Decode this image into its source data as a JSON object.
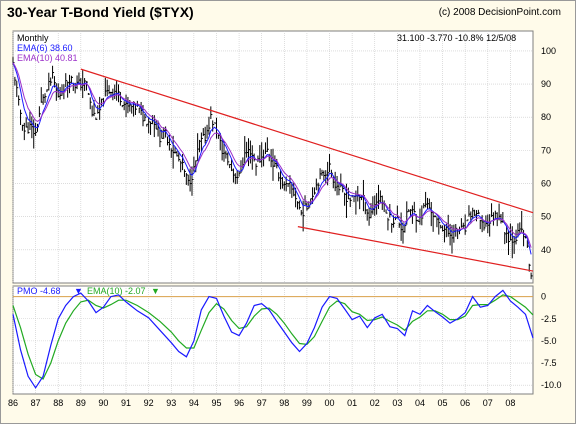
{
  "header": {
    "title": "30-Year T-Bond Yield ($TYX)",
    "copyright": "(c) 2008 DecisionPoint.com"
  },
  "top_panel": {
    "period": "Monthly",
    "ema_short_label": "EMA(6) 38.60",
    "ema_long_label": "EMA(10) 40.81",
    "quote": "31.100  -3.770  -10.8%  12/5/08"
  },
  "pmo_panel": {
    "pmo_label": "PMO  -4.68",
    "ema_label": "EMA(10)  -2.07"
  },
  "colors": {
    "background": "#ffffff",
    "panel": "#fffbea",
    "price_bars": "#000000",
    "ema_short": "#1a1aff",
    "ema_long": "#9b30c9",
    "trendline": "#e02020",
    "pmo_line": "#1a1aff",
    "pmo_ema": "#22aa22",
    "zero_line": "#d9a04a",
    "grid": "#c8c8c8"
  },
  "chart_data": [
    {
      "type": "line",
      "title": "30-Year T-Bond Yield ($TYX)",
      "xlabel": "",
      "ylabel": "",
      "x_ticks": [
        "86",
        "87",
        "88",
        "89",
        "90",
        "91",
        "92",
        "93",
        "94",
        "95",
        "96",
        "97",
        "98",
        "99",
        "00",
        "01",
        "02",
        "03",
        "04",
        "05",
        "06",
        "07",
        "08"
      ],
      "y_ticks": [
        40,
        50,
        60,
        70,
        80,
        90,
        100
      ],
      "xlim": [
        1986.0,
        2009.0
      ],
      "ylim": [
        30,
        106
      ],
      "grid": true,
      "legend_position": "top-left",
      "series": [
        {
          "name": "$TYX",
          "points": [
            [
              1986.0,
              96
            ],
            [
              1986.25,
              84
            ],
            [
              1986.5,
              76
            ],
            [
              1986.75,
              77
            ],
            [
              1987.0,
              75
            ],
            [
              1987.25,
              84
            ],
            [
              1987.5,
              88
            ],
            [
              1987.75,
              92
            ],
            [
              1988.0,
              86
            ],
            [
              1988.25,
              89
            ],
            [
              1988.5,
              92
            ],
            [
              1988.75,
              90
            ],
            [
              1989.0,
              90
            ],
            [
              1989.25,
              90
            ],
            [
              1989.5,
              81
            ],
            [
              1989.75,
              80
            ],
            [
              1990.0,
              86
            ],
            [
              1990.25,
              88
            ],
            [
              1990.5,
              88
            ],
            [
              1990.75,
              86
            ],
            [
              1991.0,
              83
            ],
            [
              1991.25,
              83
            ],
            [
              1991.5,
              83
            ],
            [
              1991.75,
              80
            ],
            [
              1992.0,
              79
            ],
            [
              1992.25,
              79
            ],
            [
              1992.5,
              74
            ],
            [
              1992.75,
              75
            ],
            [
              1993.0,
              71
            ],
            [
              1993.25,
              68
            ],
            [
              1993.5,
              65
            ],
            [
              1993.75,
              60
            ],
            [
              1994.0,
              64
            ],
            [
              1994.25,
              72
            ],
            [
              1994.5,
              74
            ],
            [
              1994.75,
              80
            ],
            [
              1995.0,
              76
            ],
            [
              1995.25,
              70
            ],
            [
              1995.5,
              67
            ],
            [
              1995.75,
              63
            ],
            [
              1996.0,
              62
            ],
            [
              1996.25,
              69
            ],
            [
              1996.5,
              70
            ],
            [
              1996.75,
              66
            ],
            [
              1997.0,
              68
            ],
            [
              1997.25,
              70
            ],
            [
              1997.5,
              66
            ],
            [
              1997.75,
              63
            ],
            [
              1998.0,
              59
            ],
            [
              1998.25,
              59
            ],
            [
              1998.5,
              56
            ],
            [
              1998.75,
              51
            ],
            [
              1999.0,
              53
            ],
            [
              1999.25,
              57
            ],
            [
              1999.5,
              61
            ],
            [
              1999.75,
              63
            ],
            [
              2000.0,
              65
            ],
            [
              2000.25,
              60
            ],
            [
              2000.5,
              58
            ],
            [
              2000.75,
              56
            ],
            [
              2001.0,
              55
            ],
            [
              2001.25,
              57
            ],
            [
              2001.5,
              55
            ],
            [
              2001.75,
              50
            ],
            [
              2002.0,
              54
            ],
            [
              2002.25,
              56
            ],
            [
              2002.5,
              51
            ],
            [
              2002.75,
              49
            ],
            [
              2003.0,
              49
            ],
            [
              2003.25,
              46
            ],
            [
              2003.5,
              52
            ],
            [
              2003.75,
              51
            ],
            [
              2004.0,
              49
            ],
            [
              2004.25,
              54
            ],
            [
              2004.5,
              52
            ],
            [
              2004.75,
              48
            ],
            [
              2005.0,
              47
            ],
            [
              2005.25,
              45
            ],
            [
              2005.5,
              45
            ],
            [
              2005.75,
              46
            ],
            [
              2006.0,
              46
            ],
            [
              2006.25,
              51
            ],
            [
              2006.5,
              51
            ],
            [
              2006.75,
              47
            ],
            [
              2007.0,
              48
            ],
            [
              2007.25,
              50
            ],
            [
              2007.5,
              51
            ],
            [
              2007.75,
              46
            ],
            [
              2008.0,
              43
            ],
            [
              2008.25,
              44
            ],
            [
              2008.5,
              46
            ],
            [
              2008.75,
              41
            ],
            [
              2008.92,
              31
            ]
          ]
        },
        {
          "name": "EMA(6)",
          "value": 38.6
        },
        {
          "name": "EMA(10)",
          "value": 40.81
        }
      ],
      "trendlines": [
        {
          "from": [
            1989.0,
            94.5
          ],
          "to": [
            2009.0,
            51.2
          ]
        },
        {
          "from": [
            1998.6,
            47.0
          ],
          "to": [
            2009.0,
            33.6
          ]
        }
      ]
    },
    {
      "type": "line",
      "title": "",
      "xlabel": "",
      "ylabel": "",
      "x_ticks": [
        "86",
        "87",
        "88",
        "89",
        "90",
        "91",
        "92",
        "93",
        "94",
        "95",
        "96",
        "97",
        "98",
        "99",
        "00",
        "01",
        "02",
        "03",
        "04",
        "05",
        "06",
        "07",
        "08"
      ],
      "y_ticks": [
        0,
        -2.5,
        -5.0,
        -7.5,
        -10.0
      ],
      "y_tick_labels": [
        "0",
        "-2.5",
        "-5.0",
        "-7.5",
        "-10.0"
      ],
      "xlim": [
        1986.0,
        2009.0
      ],
      "ylim": [
        -11,
        1.2
      ],
      "grid": true,
      "legend_position": "top-left",
      "series": [
        {
          "name": "PMO",
          "points": [
            [
              1986.0,
              -2
            ],
            [
              1986.33,
              -6
            ],
            [
              1986.67,
              -9
            ],
            [
              1987.0,
              -10.3
            ],
            [
              1987.33,
              -9
            ],
            [
              1987.67,
              -5.5
            ],
            [
              1988.0,
              -2.5
            ],
            [
              1988.33,
              -1
            ],
            [
              1988.67,
              0
            ],
            [
              1989.0,
              0.4
            ],
            [
              1989.33,
              -0.5
            ],
            [
              1989.67,
              -1.8
            ],
            [
              1990.0,
              -1.2
            ],
            [
              1990.33,
              0
            ],
            [
              1990.67,
              0.2
            ],
            [
              1991.0,
              -0.6
            ],
            [
              1991.5,
              -1.6
            ],
            [
              1992.0,
              -2.4
            ],
            [
              1992.5,
              -3.8
            ],
            [
              1993.0,
              -5.2
            ],
            [
              1993.33,
              -6.2
            ],
            [
              1993.67,
              -6.8
            ],
            [
              1994.0,
              -5
            ],
            [
              1994.33,
              -1.5
            ],
            [
              1994.67,
              0
            ],
            [
              1995.0,
              -0.2
            ],
            [
              1995.33,
              -2.2
            ],
            [
              1995.67,
              -4
            ],
            [
              1996.0,
              -4.4
            ],
            [
              1996.33,
              -3
            ],
            [
              1996.67,
              -1
            ],
            [
              1997.0,
              -0.8
            ],
            [
              1997.33,
              -1.5
            ],
            [
              1997.67,
              -2.8
            ],
            [
              1998.0,
              -4
            ],
            [
              1998.33,
              -5.2
            ],
            [
              1998.67,
              -6.2
            ],
            [
              1999.0,
              -5.3
            ],
            [
              1999.33,
              -3.5
            ],
            [
              1999.67,
              -1.2
            ],
            [
              2000.0,
              0
            ],
            [
              2000.33,
              -0.2
            ],
            [
              2000.67,
              -1.4
            ],
            [
              2001.0,
              -2.6
            ],
            [
              2001.33,
              -2.2
            ],
            [
              2001.67,
              -3.5
            ],
            [
              2002.0,
              -2.4
            ],
            [
              2002.33,
              -2
            ],
            [
              2002.67,
              -3.4
            ],
            [
              2003.0,
              -3.6
            ],
            [
              2003.33,
              -4.4
            ],
            [
              2003.67,
              -1.6
            ],
            [
              2004.0,
              -2
            ],
            [
              2004.33,
              -1
            ],
            [
              2004.67,
              -1.7
            ],
            [
              2005.0,
              -2.3
            ],
            [
              2005.33,
              -3
            ],
            [
              2005.67,
              -2.5
            ],
            [
              2006.0,
              -1.8
            ],
            [
              2006.33,
              0
            ],
            [
              2006.67,
              -1.2
            ],
            [
              2007.0,
              -1
            ],
            [
              2007.33,
              0
            ],
            [
              2007.67,
              0.7
            ],
            [
              2008.0,
              -0.5
            ],
            [
              2008.33,
              -1.2
            ],
            [
              2008.67,
              -2
            ],
            [
              2009.0,
              -4.68
            ]
          ]
        },
        {
          "name": "EMA(10)",
          "points": [
            [
              1986.0,
              -1
            ],
            [
              1986.33,
              -3.5
            ],
            [
              1986.67,
              -6.5
            ],
            [
              1987.0,
              -8.8
            ],
            [
              1987.33,
              -9.3
            ],
            [
              1987.67,
              -7.5
            ],
            [
              1988.0,
              -5
            ],
            [
              1988.33,
              -3
            ],
            [
              1988.67,
              -1.6
            ],
            [
              1989.0,
              -0.6
            ],
            [
              1989.33,
              -0.4
            ],
            [
              1989.67,
              -1
            ],
            [
              1990.0,
              -1.3
            ],
            [
              1990.33,
              -0.9
            ],
            [
              1990.67,
              -0.4
            ],
            [
              1991.0,
              -0.4
            ],
            [
              1991.5,
              -1
            ],
            [
              1992.0,
              -1.8
            ],
            [
              1992.5,
              -2.8
            ],
            [
              1993.0,
              -4
            ],
            [
              1993.33,
              -5
            ],
            [
              1993.67,
              -5.8
            ],
            [
              1994.0,
              -5.8
            ],
            [
              1994.33,
              -3.8
            ],
            [
              1994.67,
              -1.8
            ],
            [
              1995.0,
              -0.8
            ],
            [
              1995.33,
              -1.4
            ],
            [
              1995.67,
              -2.7
            ],
            [
              1996.0,
              -3.6
            ],
            [
              1996.33,
              -3.4
            ],
            [
              1996.67,
              -2.2
            ],
            [
              1997.0,
              -1.4
            ],
            [
              1997.33,
              -1.3
            ],
            [
              1997.67,
              -2
            ],
            [
              1998.0,
              -3
            ],
            [
              1998.33,
              -4.2
            ],
            [
              1998.67,
              -5.3
            ],
            [
              1999.0,
              -5.4
            ],
            [
              1999.33,
              -4.5
            ],
            [
              1999.67,
              -2.8
            ],
            [
              2000.0,
              -1.2
            ],
            [
              2000.33,
              -0.5
            ],
            [
              2000.67,
              -0.8
            ],
            [
              2001.0,
              -1.7
            ],
            [
              2001.33,
              -2
            ],
            [
              2001.67,
              -2.7
            ],
            [
              2002.0,
              -2.6
            ],
            [
              2002.33,
              -2.3
            ],
            [
              2002.67,
              -2.8
            ],
            [
              2003.0,
              -3.2
            ],
            [
              2003.33,
              -3.8
            ],
            [
              2003.67,
              -2.8
            ],
            [
              2004.0,
              -2.3
            ],
            [
              2004.33,
              -1.6
            ],
            [
              2004.67,
              -1.6
            ],
            [
              2005.0,
              -2
            ],
            [
              2005.33,
              -2.6
            ],
            [
              2005.67,
              -2.6
            ],
            [
              2006.0,
              -2.2
            ],
            [
              2006.33,
              -1
            ],
            [
              2006.67,
              -0.9
            ],
            [
              2007.0,
              -0.9
            ],
            [
              2007.33,
              -0.4
            ],
            [
              2007.67,
              0.2
            ],
            [
              2008.0,
              0
            ],
            [
              2008.33,
              -0.6
            ],
            [
              2008.67,
              -1.2
            ],
            [
              2009.0,
              -2.07
            ]
          ]
        }
      ]
    }
  ]
}
